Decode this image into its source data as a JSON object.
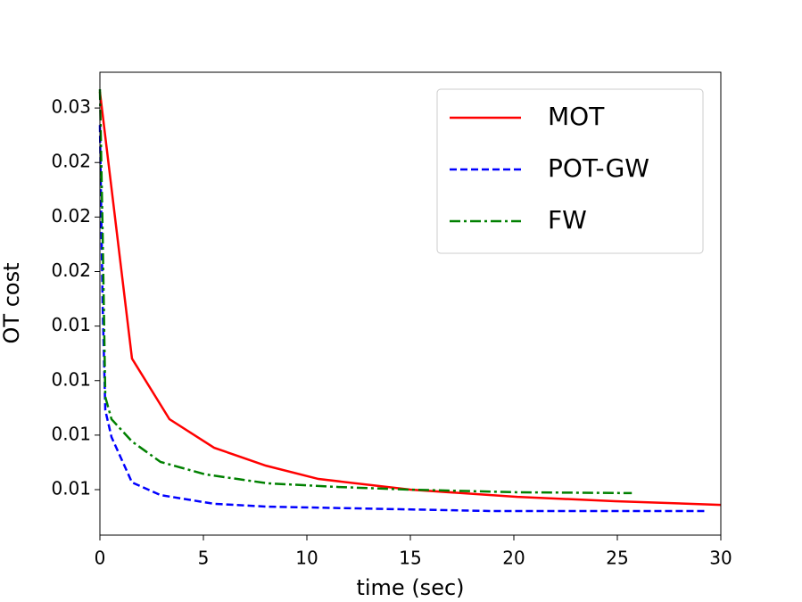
{
  "chart_data": {
    "type": "line",
    "xlabel": "time (sec)",
    "ylabel": "OT cost",
    "xlim": [
      0,
      30
    ],
    "xticks": [
      0,
      5,
      10,
      15,
      20,
      25,
      30
    ],
    "ylim": [
      0.005415,
      0.02664
    ],
    "yticks": [
      {
        "value": 0.0075,
        "label": "0.01"
      },
      {
        "value": 0.01,
        "label": "0.01"
      },
      {
        "value": 0.0125,
        "label": "0.01"
      },
      {
        "value": 0.015,
        "label": "0.01"
      },
      {
        "value": 0.0175,
        "label": "0.02"
      },
      {
        "value": 0.02,
        "label": "0.02"
      },
      {
        "value": 0.0225,
        "label": "0.02"
      },
      {
        "value": 0.025,
        "label": "0.03"
      }
    ],
    "legend": "upper right",
    "series": [
      {
        "name": "MOT",
        "color": "#ff0000",
        "dash": "solid",
        "x": [
          0,
          1.55,
          3.36,
          5.52,
          8.02,
          10.56,
          15.0,
          20.17,
          24.9,
          30
        ],
        "values": [
          0.02574,
          0.01351,
          0.01073,
          0.00942,
          0.0086,
          0.00799,
          0.0075,
          0.00717,
          0.00697,
          0.0068
        ]
      },
      {
        "name": "POT-GW",
        "color": "#0000ff",
        "dash": "dashed",
        "x": [
          0,
          0.13,
          0.26,
          0.56,
          1.55,
          2.93,
          5.52,
          8.1,
          12.4,
          18.9,
          29.2
        ],
        "values": [
          0.02422,
          0.01605,
          0.01114,
          0.00991,
          0.00783,
          0.00725,
          0.00685,
          0.00672,
          0.00664,
          0.00652,
          0.00652
        ]
      },
      {
        "name": "FW",
        "color": "#008000",
        "dash": "dashdot",
        "x": [
          0,
          0.13,
          0.26,
          0.56,
          1.55,
          2.93,
          5.09,
          8.1,
          11.55,
          15,
          20.17,
          25.7
        ],
        "values": [
          0.02586,
          0.01932,
          0.01175,
          0.01073,
          0.00971,
          0.00877,
          0.0082,
          0.00779,
          0.00762,
          0.0075,
          0.00738,
          0.00734
        ]
      }
    ]
  }
}
